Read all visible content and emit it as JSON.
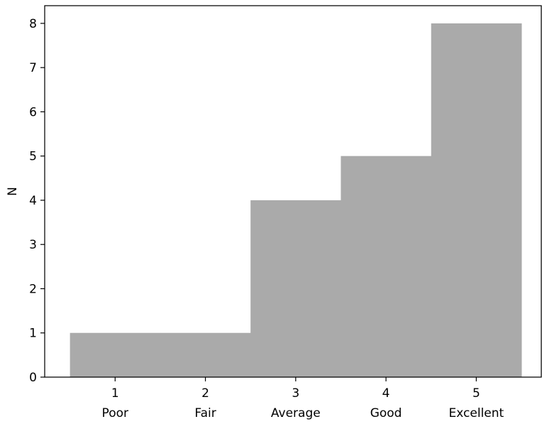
{
  "chart_data": {
    "type": "bar",
    "categories": [
      "1",
      "2",
      "3",
      "4",
      "5"
    ],
    "category_labels": [
      "Poor",
      "Fair",
      "Average",
      "Good",
      "Excellent"
    ],
    "values": [
      1,
      1,
      4,
      5,
      8
    ],
    "title": "",
    "xlabel": "",
    "ylabel": "N",
    "ylim": [
      0,
      8.4
    ],
    "xlim": [
      0.22,
      5.72
    ],
    "yticks": [
      0,
      1,
      2,
      3,
      4,
      5,
      6,
      7,
      8
    ],
    "bar_style": "step",
    "bar_color": "#aaaaaa",
    "grid": false,
    "legend": "none"
  }
}
